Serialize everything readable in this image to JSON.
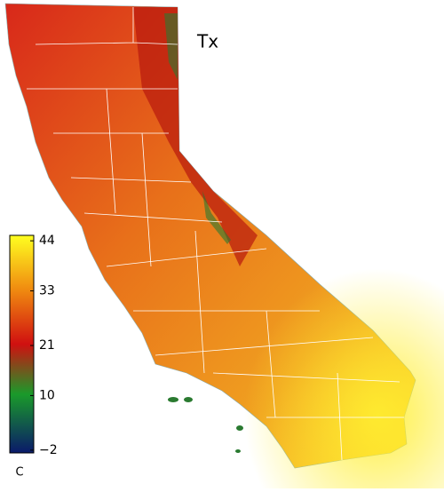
{
  "title": "Tx",
  "colorbar": {
    "clim": [
      -2.6,
      45.2
    ],
    "ticks": [
      44,
      33,
      21,
      10,
      {
        "value": -2,
        "label": "−2"
      }
    ],
    "unit": "C"
  }
}
